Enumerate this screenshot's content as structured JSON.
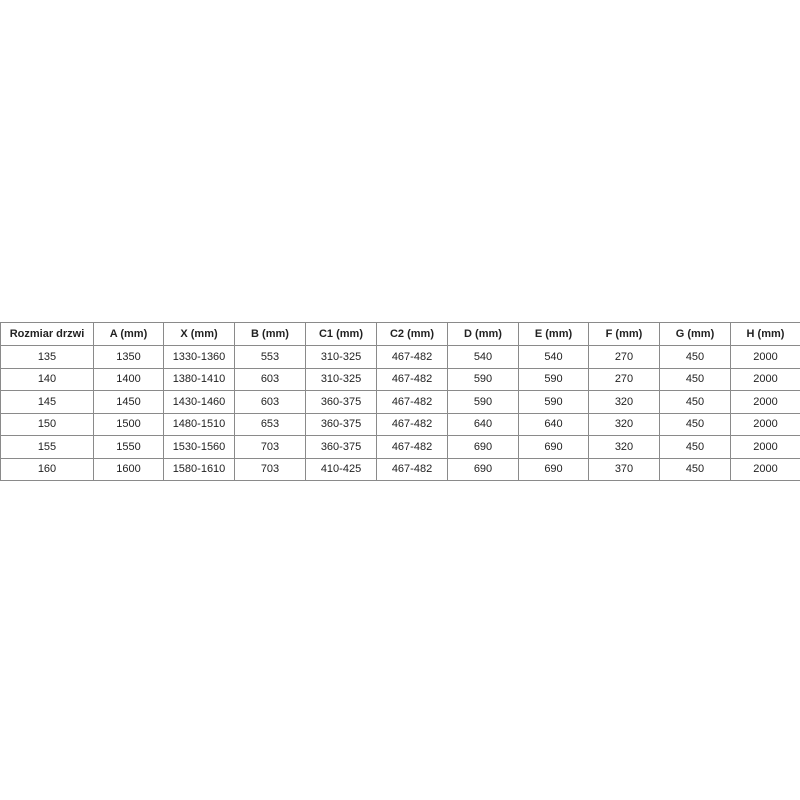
{
  "table": {
    "header": [
      "Rozmiar drzwi",
      "A (mm)",
      "X (mm)",
      "B (mm)",
      "C1 (mm)",
      "C2 (mm)",
      "D (mm)",
      "E (mm)",
      "F (mm)",
      "G (mm)",
      "H (mm)"
    ],
    "rows": [
      [
        135,
        1350,
        "1330-1360",
        553,
        "310-325",
        "467-482",
        540,
        540,
        270,
        450,
        2000
      ],
      [
        140,
        1400,
        "1380-1410",
        603,
        "310-325",
        "467-482",
        590,
        590,
        270,
        450,
        2000
      ],
      [
        145,
        1450,
        "1430-1460",
        603,
        "360-375",
        "467-482",
        590,
        590,
        320,
        450,
        2000
      ],
      [
        150,
        1500,
        "1480-1510",
        653,
        "360-375",
        "467-482",
        640,
        640,
        320,
        450,
        2000
      ],
      [
        155,
        1550,
        "1530-1560",
        703,
        "360-375",
        "467-482",
        690,
        690,
        320,
        450,
        2000
      ],
      [
        160,
        1600,
        "1580-1610",
        703,
        "410-425",
        "467-482",
        690,
        690,
        370,
        450,
        2000
      ]
    ]
  }
}
